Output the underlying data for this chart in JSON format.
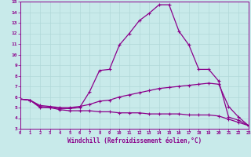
{
  "xlabel": "Windchill (Refroidissement éolien,°C)",
  "xlim": [
    0,
    23
  ],
  "ylim": [
    3,
    15
  ],
  "xticks": [
    0,
    1,
    2,
    3,
    4,
    5,
    6,
    7,
    8,
    9,
    10,
    11,
    12,
    13,
    14,
    15,
    16,
    17,
    18,
    19,
    20,
    21,
    22,
    23
  ],
  "yticks": [
    3,
    4,
    5,
    6,
    7,
    8,
    9,
    10,
    11,
    12,
    13,
    14,
    15
  ],
  "background_color": "#c8eaea",
  "grid_color": "#b0d8d8",
  "line_color": "#8b008b",
  "line1_x": [
    0,
    1,
    2,
    3,
    4,
    5,
    6,
    7,
    8,
    9,
    10,
    11,
    12,
    13,
    14,
    15,
    16,
    17,
    18,
    19,
    20,
    21,
    22,
    23
  ],
  "line1_y": [
    5.8,
    5.7,
    5.0,
    5.0,
    4.8,
    4.7,
    4.7,
    4.7,
    4.6,
    4.6,
    4.5,
    4.5,
    4.5,
    4.4,
    4.4,
    4.4,
    4.4,
    4.3,
    4.3,
    4.3,
    4.2,
    3.9,
    3.6,
    3.3
  ],
  "line2_x": [
    0,
    1,
    2,
    3,
    4,
    5,
    6,
    7,
    8,
    9,
    10,
    11,
    12,
    13,
    14,
    15,
    16,
    17,
    18,
    19,
    20,
    21,
    22,
    23
  ],
  "line2_y": [
    5.8,
    5.7,
    5.1,
    5.0,
    4.9,
    4.9,
    5.0,
    6.5,
    8.5,
    8.6,
    10.9,
    12.0,
    13.2,
    13.9,
    14.7,
    14.7,
    12.2,
    10.9,
    8.6,
    8.6,
    7.5,
    4.1,
    3.8,
    3.3
  ],
  "line3_x": [
    0,
    1,
    2,
    3,
    4,
    5,
    6,
    7,
    8,
    9,
    10,
    11,
    12,
    13,
    14,
    15,
    16,
    17,
    18,
    19,
    20,
    21,
    22,
    23
  ],
  "line3_y": [
    5.8,
    5.7,
    5.2,
    5.1,
    5.0,
    5.0,
    5.1,
    5.3,
    5.6,
    5.7,
    6.0,
    6.2,
    6.4,
    6.6,
    6.8,
    6.9,
    7.0,
    7.1,
    7.2,
    7.3,
    7.2,
    5.1,
    4.1,
    3.3
  ]
}
